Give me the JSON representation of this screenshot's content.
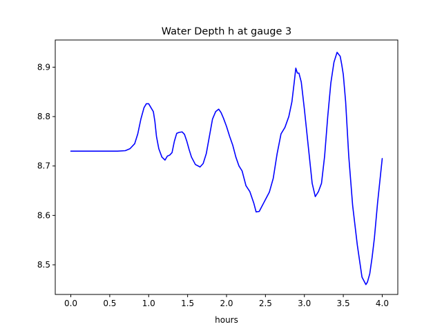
{
  "chart_data": {
    "type": "line",
    "title": "Water Depth h at gauge 3",
    "xlabel": "hours",
    "ylabel": "",
    "xlim": [
      -0.2,
      4.2
    ],
    "ylim": [
      8.44,
      8.955
    ],
    "xticks": [
      0.0,
      0.5,
      1.0,
      1.5,
      2.0,
      2.5,
      3.0,
      3.5,
      4.0
    ],
    "xtick_labels": [
      "0.0",
      "0.5",
      "1.0",
      "1.5",
      "2.0",
      "2.5",
      "3.0",
      "3.5",
      "4.0"
    ],
    "yticks": [
      8.5,
      8.6,
      8.7,
      8.8,
      8.9
    ],
    "ytick_labels": [
      "8.5",
      "8.6",
      "8.7",
      "8.8",
      "8.9"
    ],
    "grid": false,
    "series": [
      {
        "color": "#0000ff",
        "x": [
          0.0,
          0.3,
          0.6,
          0.7,
          0.76,
          0.82,
          0.86,
          0.9,
          0.94,
          0.97,
          1.0,
          1.03,
          1.06,
          1.08,
          1.1,
          1.13,
          1.17,
          1.21,
          1.24,
          1.27,
          1.3,
          1.33,
          1.36,
          1.39,
          1.43,
          1.46,
          1.49,
          1.52,
          1.55,
          1.6,
          1.66,
          1.7,
          1.74,
          1.78,
          1.82,
          1.86,
          1.9,
          1.93,
          1.96,
          2.0,
          2.04,
          2.08,
          2.12,
          2.16,
          2.2,
          2.25,
          2.3,
          2.35,
          2.38,
          2.42,
          2.46,
          2.5,
          2.55,
          2.6,
          2.65,
          2.7,
          2.75,
          2.8,
          2.84,
          2.87,
          2.89,
          2.91,
          2.93,
          2.96,
          3.0,
          3.05,
          3.1,
          3.14,
          3.18,
          3.22,
          3.26,
          3.3,
          3.34,
          3.38,
          3.42,
          3.46,
          3.48,
          3.5,
          3.53,
          3.57,
          3.62,
          3.68,
          3.74,
          3.79,
          3.81,
          3.84,
          3.87,
          3.9,
          3.94,
          3.97,
          4.0
        ],
        "y": [
          8.73,
          8.73,
          8.73,
          8.731,
          8.735,
          8.745,
          8.765,
          8.795,
          8.818,
          8.826,
          8.826,
          8.818,
          8.81,
          8.79,
          8.76,
          8.735,
          8.718,
          8.712,
          8.72,
          8.722,
          8.727,
          8.75,
          8.766,
          8.768,
          8.769,
          8.764,
          8.75,
          8.733,
          8.718,
          8.703,
          8.698,
          8.705,
          8.725,
          8.76,
          8.795,
          8.81,
          8.815,
          8.808,
          8.797,
          8.78,
          8.76,
          8.742,
          8.718,
          8.7,
          8.69,
          8.66,
          8.648,
          8.625,
          8.607,
          8.608,
          8.62,
          8.632,
          8.647,
          8.675,
          8.725,
          8.765,
          8.778,
          8.8,
          8.83,
          8.87,
          8.898,
          8.888,
          8.888,
          8.87,
          8.815,
          8.74,
          8.665,
          8.638,
          8.648,
          8.665,
          8.72,
          8.8,
          8.868,
          8.91,
          8.93,
          8.922,
          8.905,
          8.885,
          8.83,
          8.72,
          8.62,
          8.54,
          8.475,
          8.46,
          8.465,
          8.482,
          8.515,
          8.555,
          8.625,
          8.67,
          8.715
        ]
      }
    ]
  }
}
